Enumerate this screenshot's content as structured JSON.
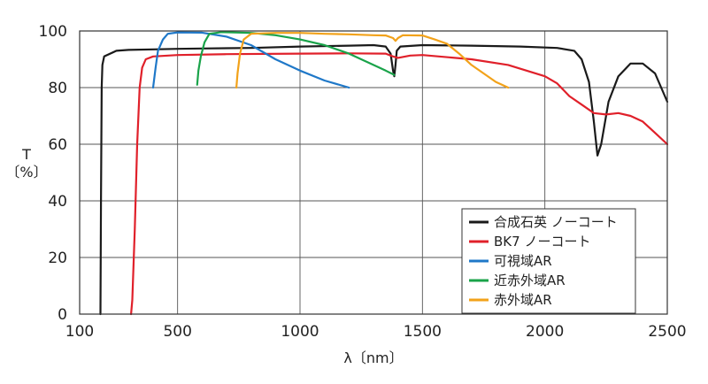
{
  "chart_data": {
    "type": "line",
    "xlabel": "λ〔nm〕",
    "ylabel_line1": "T",
    "ylabel_line2": "〔%〕",
    "xlim": [
      100,
      2500
    ],
    "ylim": [
      0,
      100
    ],
    "xticks": [
      100,
      500,
      1000,
      1500,
      2000,
      2500
    ],
    "yticks": [
      0,
      20,
      40,
      60,
      80,
      100
    ],
    "grid": true,
    "legend_position": "bottom-right",
    "series": [
      {
        "name": "合成石英 ノーコート",
        "color": "#1a1a1a",
        "points": [
          [
            185,
            0
          ],
          [
            187,
            40
          ],
          [
            190,
            80
          ],
          [
            193,
            88
          ],
          [
            200,
            91
          ],
          [
            250,
            93
          ],
          [
            300,
            93.3
          ],
          [
            400,
            93.5
          ],
          [
            500,
            93.7
          ],
          [
            600,
            93.8
          ],
          [
            800,
            94
          ],
          [
            1000,
            94.5
          ],
          [
            1200,
            94.8
          ],
          [
            1300,
            95
          ],
          [
            1350,
            94.5
          ],
          [
            1370,
            92
          ],
          [
            1380,
            86
          ],
          [
            1385,
            84
          ],
          [
            1390,
            88
          ],
          [
            1395,
            93
          ],
          [
            1410,
            94.5
          ],
          [
            1500,
            95
          ],
          [
            1700,
            94.8
          ],
          [
            1900,
            94.5
          ],
          [
            2050,
            94
          ],
          [
            2120,
            93
          ],
          [
            2150,
            90
          ],
          [
            2180,
            82
          ],
          [
            2200,
            68
          ],
          [
            2215,
            56
          ],
          [
            2230,
            60
          ],
          [
            2260,
            75
          ],
          [
            2300,
            84
          ],
          [
            2350,
            88.5
          ],
          [
            2400,
            88.5
          ],
          [
            2450,
            85
          ],
          [
            2500,
            75
          ]
        ]
      },
      {
        "name": "BK7 ノーコート",
        "color": "#e0202a",
        "points": [
          [
            310,
            0
          ],
          [
            315,
            5
          ],
          [
            325,
            30
          ],
          [
            335,
            60
          ],
          [
            345,
            80
          ],
          [
            355,
            87
          ],
          [
            370,
            90
          ],
          [
            400,
            91
          ],
          [
            500,
            91.5
          ],
          [
            700,
            91.8
          ],
          [
            1000,
            92
          ],
          [
            1200,
            92.1
          ],
          [
            1350,
            92
          ],
          [
            1380,
            91
          ],
          [
            1400,
            90.5
          ],
          [
            1450,
            91.3
          ],
          [
            1500,
            91.5
          ],
          [
            1700,
            90
          ],
          [
            1850,
            88
          ],
          [
            2000,
            84
          ],
          [
            2050,
            81.5
          ],
          [
            2100,
            77
          ],
          [
            2150,
            74
          ],
          [
            2200,
            71
          ],
          [
            2250,
            70.5
          ],
          [
            2300,
            71
          ],
          [
            2350,
            70
          ],
          [
            2400,
            68
          ],
          [
            2450,
            64
          ],
          [
            2500,
            60
          ]
        ]
      },
      {
        "name": "可視域AR",
        "color": "#1f78c8",
        "points": [
          [
            400,
            80
          ],
          [
            410,
            87
          ],
          [
            420,
            93
          ],
          [
            440,
            97
          ],
          [
            460,
            99
          ],
          [
            500,
            99.5
          ],
          [
            600,
            99.4
          ],
          [
            700,
            98
          ],
          [
            800,
            95
          ],
          [
            900,
            90
          ],
          [
            1000,
            86
          ],
          [
            1100,
            82.5
          ],
          [
            1200,
            80
          ]
        ]
      },
      {
        "name": "近赤外域AR",
        "color": "#1aa34a",
        "points": [
          [
            580,
            81
          ],
          [
            585,
            86
          ],
          [
            595,
            91
          ],
          [
            610,
            96
          ],
          [
            630,
            99
          ],
          [
            680,
            99.6
          ],
          [
            800,
            99.3
          ],
          [
            900,
            98.5
          ],
          [
            1000,
            97
          ],
          [
            1100,
            95
          ],
          [
            1200,
            92
          ],
          [
            1300,
            88
          ],
          [
            1350,
            86
          ],
          [
            1385,
            84.5
          ]
        ]
      },
      {
        "name": "赤外域AR",
        "color": "#f2a21a",
        "points": [
          [
            740,
            80
          ],
          [
            745,
            85
          ],
          [
            755,
            92
          ],
          [
            770,
            97
          ],
          [
            800,
            99
          ],
          [
            900,
            99.3
          ],
          [
            1000,
            99.3
          ],
          [
            1100,
            99
          ],
          [
            1200,
            98.8
          ],
          [
            1300,
            98.5
          ],
          [
            1350,
            98.4
          ],
          [
            1380,
            97.5
          ],
          [
            1390,
            96.5
          ],
          [
            1400,
            97.5
          ],
          [
            1420,
            98.5
          ],
          [
            1500,
            98.4
          ],
          [
            1550,
            97
          ],
          [
            1600,
            95.5
          ],
          [
            1650,
            92
          ],
          [
            1700,
            88
          ],
          [
            1750,
            85
          ],
          [
            1800,
            82
          ],
          [
            1850,
            80
          ]
        ]
      }
    ]
  }
}
